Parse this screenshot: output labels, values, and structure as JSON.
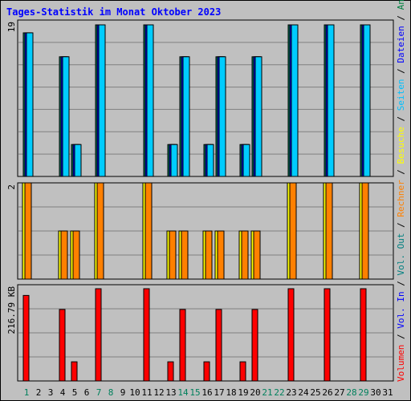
{
  "title": "Tages-Statistik im Monat Oktober 2023",
  "right_legend": [
    {
      "text": "Volumen",
      "color": "#ff0000"
    },
    {
      "text": "/",
      "color": "#000000"
    },
    {
      "text": "Vol. In",
      "color": "#0000ff"
    },
    {
      "text": "/",
      "color": "#000000"
    },
    {
      "text": "Vol. Out",
      "color": "#008080"
    },
    {
      "text": "/",
      "color": "#000000"
    },
    {
      "text": "Rechner",
      "color": "#ff8000"
    },
    {
      "text": "/",
      "color": "#000000"
    },
    {
      "text": "Besuche",
      "color": "#ffff00"
    },
    {
      "text": "/",
      "color": "#000000"
    },
    {
      "text": "Seiten",
      "color": "#00c0ff"
    },
    {
      "text": "/",
      "color": "#000000"
    },
    {
      "text": "Dateien",
      "color": "#0000ff"
    },
    {
      "text": "/",
      "color": "#000000"
    },
    {
      "text": "Anfragen",
      "color": "#008040"
    }
  ],
  "colors": {
    "background": "#c0c0c0",
    "grid": "#808080",
    "anfragen": "#00805c",
    "dateien": "#0000ff",
    "seiten": "#00ccff",
    "besuche": "#ffff00",
    "rechner": "#ff8000",
    "volumen": "#ff0000",
    "weekday_label": "#000000",
    "weekend_label": "#00805c"
  },
  "chart_data": {
    "type": "bar",
    "categories": [
      "1",
      "2",
      "3",
      "4",
      "5",
      "6",
      "7",
      "8",
      "9",
      "10",
      "11",
      "12",
      "13",
      "14",
      "15",
      "16",
      "17",
      "18",
      "19",
      "20",
      "21",
      "22",
      "23",
      "24",
      "25",
      "26",
      "27",
      "28",
      "29",
      "30",
      "31"
    ],
    "weekend_days": [
      1,
      7,
      8,
      14,
      15,
      21,
      22,
      28,
      29
    ],
    "panels": [
      {
        "id": "requests",
        "ymax_label": "19",
        "ylim": [
          0,
          19
        ],
        "series": [
          {
            "name": "Anfragen",
            "values": [
              18,
              0,
              0,
              15,
              4,
              0,
              19,
              0,
              0,
              0,
              19,
              0,
              4,
              15,
              0,
              4,
              15,
              0,
              4,
              15,
              0,
              0,
              19,
              0,
              0,
              19,
              0,
              0,
              19,
              0,
              0
            ]
          },
          {
            "name": "Dateien",
            "values": [
              18,
              0,
              0,
              15,
              4,
              0,
              19,
              0,
              0,
              0,
              19,
              0,
              4,
              15,
              0,
              4,
              15,
              0,
              4,
              15,
              0,
              0,
              19,
              0,
              0,
              19,
              0,
              0,
              19,
              0,
              0
            ]
          },
          {
            "name": "Seiten",
            "values": [
              18,
              0,
              0,
              15,
              4,
              0,
              19,
              0,
              0,
              0,
              19,
              0,
              4,
              15,
              0,
              4,
              15,
              0,
              4,
              15,
              0,
              0,
              19,
              0,
              0,
              19,
              0,
              0,
              19,
              0,
              0
            ]
          }
        ]
      },
      {
        "id": "visits",
        "ymax_label": "2",
        "ylim": [
          0,
          2
        ],
        "series": [
          {
            "name": "Besuche",
            "values": [
              2,
              0,
              0,
              1,
              1,
              0,
              2,
              0,
              0,
              0,
              2,
              0,
              1,
              1,
              0,
              1,
              1,
              0,
              1,
              1,
              0,
              0,
              2,
              0,
              0,
              2,
              0,
              0,
              2,
              0,
              0
            ]
          },
          {
            "name": "Rechner",
            "values": [
              2,
              0,
              0,
              1,
              1,
              0,
              2,
              0,
              0,
              0,
              2,
              0,
              1,
              1,
              0,
              1,
              1,
              0,
              1,
              1,
              0,
              0,
              2,
              0,
              0,
              2,
              0,
              0,
              2,
              0,
              0
            ]
          }
        ]
      },
      {
        "id": "volume",
        "ymax_label": "216.79 KB",
        "ylim": [
          0,
          216.79
        ],
        "series": [
          {
            "name": "Volumen",
            "values": [
              201,
              0,
              0,
              168,
              45,
              0,
              216.79,
              0,
              0,
              0,
              216.79,
              0,
              45,
              168,
              0,
              45,
              168,
              0,
              45,
              168,
              0,
              0,
              216.79,
              0,
              0,
              216.79,
              0,
              0,
              216.79,
              0,
              0
            ]
          }
        ]
      }
    ]
  }
}
